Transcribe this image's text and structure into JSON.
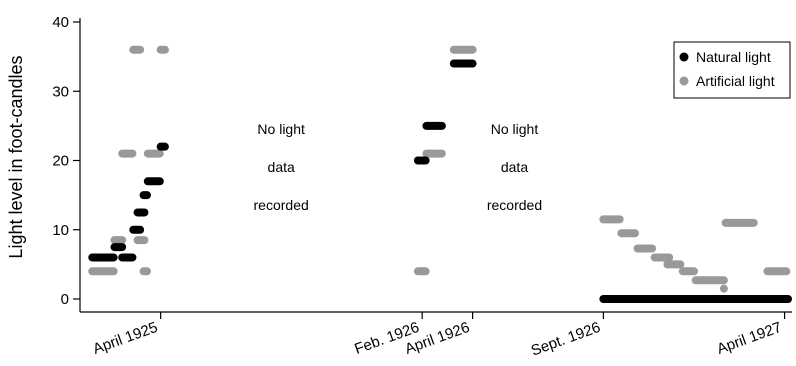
{
  "chart_data": {
    "type": "scatter",
    "title": "",
    "ylabel": "Light level in foot-candles",
    "xlabel": "",
    "ylim": [
      0,
      40
    ],
    "xlim": [
      "1925-01-06",
      "1927-04-05"
    ],
    "y_ticks": [
      "0",
      "10",
      "20",
      "30",
      "40"
    ],
    "x_ticks": [
      {
        "label": "April 1925",
        "date": "1925-04-01"
      },
      {
        "label": "Feb. 1926",
        "date": "1926-02-01"
      },
      {
        "label": "April 1926",
        "date": "1926-04-01"
      },
      {
        "label": "Sept. 1926",
        "date": "1926-09-01"
      },
      {
        "label": "April 1927",
        "date": "1927-04-01"
      }
    ],
    "legend": {
      "position": "top-right",
      "entries": [
        {
          "label": "Natural light",
          "color": "#000000"
        },
        {
          "label": "Artificial light",
          "color": "#999999"
        }
      ]
    },
    "annotations": [
      {
        "lines": [
          "No light",
          "data",
          "recorded"
        ],
        "x": "1925-08-20"
      },
      {
        "lines": [
          "No light",
          "data",
          "recorded"
        ],
        "x": "1926-05-20"
      }
    ],
    "series": [
      {
        "name": "Natural light",
        "color": "#000000",
        "segments": [
          {
            "x0": "1925-01-11",
            "x1": "1925-02-05",
            "y": 6
          },
          {
            "x0": "1925-02-06",
            "x1": "1925-02-15",
            "y": 7.5
          },
          {
            "x0": "1925-02-15",
            "x1": "1925-02-27",
            "y": 6
          },
          {
            "x0": "1925-02-28",
            "x1": "1925-03-08",
            "y": 10
          },
          {
            "x0": "1925-03-05",
            "x1": "1925-03-13",
            "y": 12.5
          },
          {
            "x0": "1925-03-12",
            "x1": "1925-03-16",
            "y": 15
          },
          {
            "x0": "1925-03-17",
            "x1": "1925-03-31",
            "y": 17
          },
          {
            "x0": "1925-04-01",
            "x1": "1925-04-06",
            "y": 22
          },
          {
            "x0": "1926-01-27",
            "x1": "1926-02-05",
            "y": 20
          },
          {
            "x0": "1926-02-06",
            "x1": "1926-02-24",
            "y": 25
          },
          {
            "x0": "1926-03-10",
            "x1": "1926-04-01",
            "y": 34
          },
          {
            "x0": "1926-09-01",
            "x1": "1927-04-05",
            "y": 0
          }
        ]
      },
      {
        "name": "Artificial light",
        "color": "#999999",
        "segments": [
          {
            "x0": "1925-01-11",
            "x1": "1925-02-05",
            "y": 4
          },
          {
            "x0": "1925-02-06",
            "x1": "1925-02-15",
            "y": 8.5
          },
          {
            "x0": "1925-02-15",
            "x1": "1925-02-27",
            "y": 21
          },
          {
            "x0": "1925-02-28",
            "x1": "1925-03-08",
            "y": 36
          },
          {
            "x0": "1925-03-05",
            "x1": "1925-03-13",
            "y": 8.5
          },
          {
            "x0": "1925-03-12",
            "x1": "1925-03-16",
            "y": 4
          },
          {
            "x0": "1925-03-17",
            "x1": "1925-03-31",
            "y": 21
          },
          {
            "x0": "1925-04-01",
            "x1": "1925-04-06",
            "y": 36
          },
          {
            "x0": "1926-01-27",
            "x1": "1926-02-05",
            "y": 4
          },
          {
            "x0": "1926-02-06",
            "x1": "1926-02-24",
            "y": 21
          },
          {
            "x0": "1926-03-10",
            "x1": "1926-04-01",
            "y": 36
          },
          {
            "x0": "1926-09-01",
            "x1": "1926-09-20",
            "y": 11.5
          },
          {
            "x0": "1926-09-22",
            "x1": "1926-10-08",
            "y": 9.5
          },
          {
            "x0": "1926-10-11",
            "x1": "1926-10-28",
            "y": 7.3
          },
          {
            "x0": "1926-10-31",
            "x1": "1926-11-17",
            "y": 6
          },
          {
            "x0": "1926-11-15",
            "x1": "1926-11-30",
            "y": 5
          },
          {
            "x0": "1926-12-03",
            "x1": "1926-12-16",
            "y": 4
          },
          {
            "x0": "1926-12-18",
            "x1": "1927-01-20",
            "y": 2.7
          },
          {
            "x0": "1927-01-20",
            "x1": "1927-01-20",
            "y": 1.5
          },
          {
            "x0": "1927-01-22",
            "x1": "1927-02-24",
            "y": 11
          },
          {
            "x0": "1927-03-12",
            "x1": "1927-04-03",
            "y": 4
          }
        ]
      }
    ]
  }
}
